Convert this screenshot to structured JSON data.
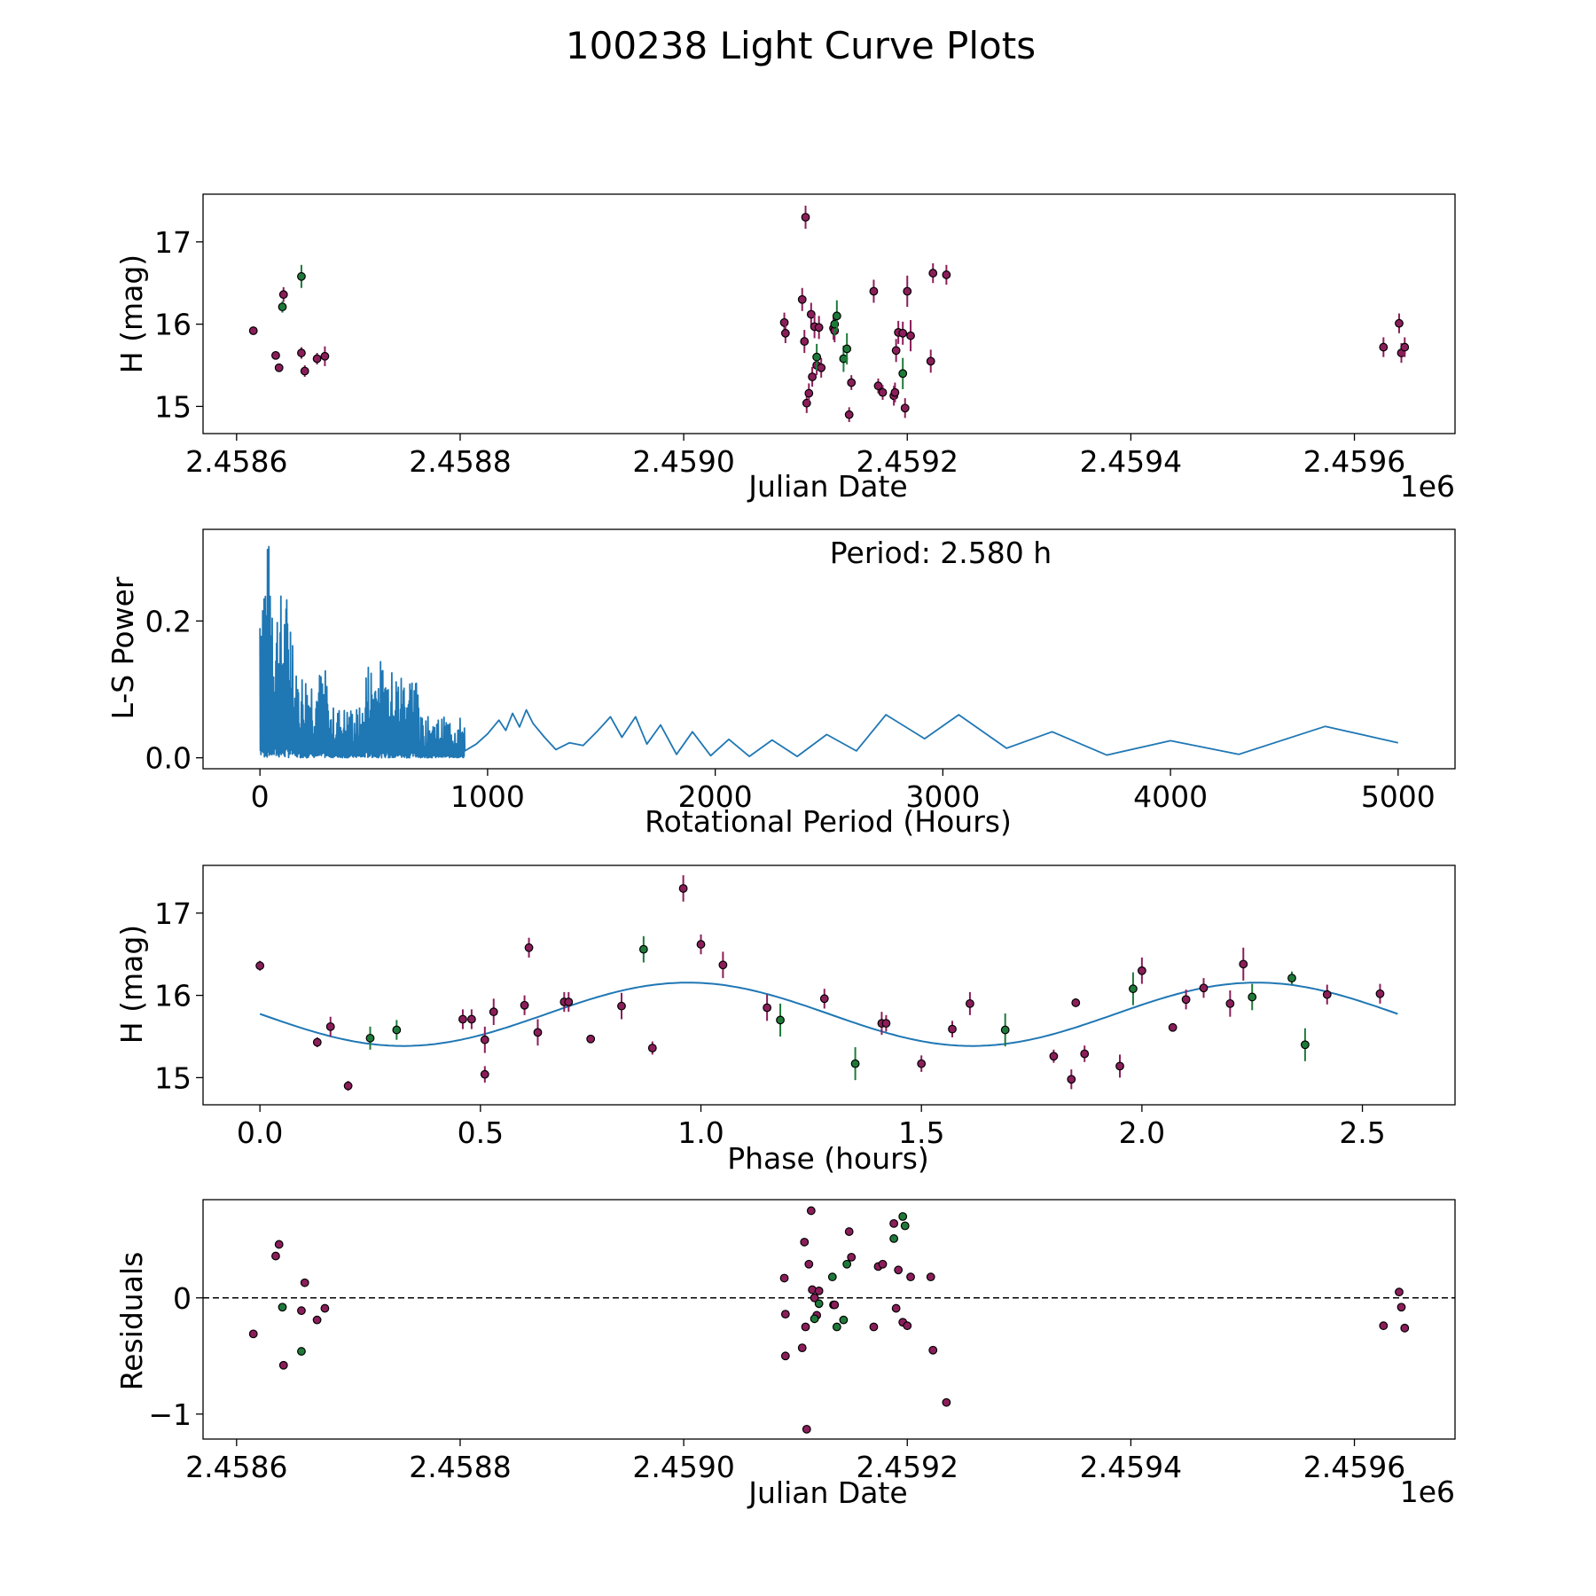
{
  "figure_title": "100238 Light Curve Plots",
  "colors": {
    "purple": "#8b1e5a",
    "green": "#1f7a3a",
    "line": "#1f77b4",
    "edge": "#000000"
  },
  "chart_data": [
    {
      "type": "scatter",
      "panel": "lightcurve",
      "title": "",
      "xlabel": "Julian Date",
      "ylabel": "H (mag)",
      "x_offset_label": "1e6",
      "xlim": [
        2.45857,
        2.45969
      ],
      "ylim": [
        14.67,
        17.58
      ],
      "xticks": [
        2.4586,
        2.4588,
        2.459,
        2.4592,
        2.4594,
        2.4596
      ],
      "xtick_labels": [
        "2.4586",
        "2.4588",
        "2.4590",
        "2.4592",
        "2.4594",
        "2.4596"
      ],
      "yticks": [
        15,
        16,
        17
      ],
      "ytick_labels": [
        "15",
        "16",
        "17"
      ],
      "series": [
        {
          "name": "purple",
          "color": "purple",
          "points": [
            [
              2.458615,
              15.92,
              0.05
            ],
            [
              2.458635,
              15.62,
              0.05
            ],
            [
              2.458638,
              15.47,
              0.05
            ],
            [
              2.458642,
              16.36,
              0.09
            ],
            [
              2.458658,
              15.65,
              0.07
            ],
            [
              2.458661,
              15.43,
              0.07
            ],
            [
              2.458672,
              15.58,
              0.07
            ],
            [
              2.458679,
              15.61,
              0.12
            ],
            [
              2.45909,
              16.02,
              0.12
            ],
            [
              2.459091,
              15.89,
              0.12
            ],
            [
              2.459106,
              16.3,
              0.14
            ],
            [
              2.459108,
              15.79,
              0.14
            ],
            [
              2.459109,
              17.3,
              0.14
            ],
            [
              2.45911,
              15.04,
              0.12
            ],
            [
              2.459112,
              15.16,
              0.12
            ],
            [
              2.459114,
              16.12,
              0.14
            ],
            [
              2.459115,
              15.36,
              0.12
            ],
            [
              2.459117,
              15.97,
              0.14
            ],
            [
              2.459119,
              15.5,
              0.12
            ],
            [
              2.459121,
              15.96,
              0.14
            ],
            [
              2.459123,
              15.47,
              0.12
            ],
            [
              2.459134,
              15.95,
              0.14
            ],
            [
              2.459135,
              15.92,
              0.14
            ],
            [
              2.459148,
              14.9,
              0.09
            ],
            [
              2.45915,
              15.29,
              0.09
            ],
            [
              2.45917,
              16.4,
              0.14
            ],
            [
              2.459174,
              15.25,
              0.09
            ],
            [
              2.459178,
              15.17,
              0.09
            ],
            [
              2.459188,
              15.13,
              0.12
            ],
            [
              2.459189,
              15.17,
              0.12
            ],
            [
              2.45919,
              15.68,
              0.14
            ],
            [
              2.459192,
              15.9,
              0.14
            ],
            [
              2.459196,
              15.89,
              0.14
            ],
            [
              2.459198,
              14.98,
              0.12
            ],
            [
              2.4592,
              16.4,
              0.19
            ],
            [
              2.459203,
              15.86,
              0.19
            ],
            [
              2.459221,
              15.55,
              0.14
            ],
            [
              2.459223,
              16.62,
              0.12
            ],
            [
              2.459235,
              16.6,
              0.12
            ],
            [
              2.459626,
              15.72,
              0.12
            ],
            [
              2.45964,
              16.01,
              0.12
            ],
            [
              2.459642,
              15.65,
              0.12
            ],
            [
              2.459645,
              15.72,
              0.12
            ]
          ]
        },
        {
          "name": "green",
          "color": "green",
          "points": [
            [
              2.458641,
              16.21,
              0.07
            ],
            [
              2.458658,
              16.58,
              0.14
            ],
            [
              2.459119,
              15.6,
              0.16
            ],
            [
              2.459135,
              16.0,
              0.14
            ],
            [
              2.459137,
              16.1,
              0.19
            ],
            [
              2.459143,
              15.58,
              0.16
            ],
            [
              2.459146,
              15.7,
              0.19
            ],
            [
              2.459196,
              15.4,
              0.19
            ]
          ]
        }
      ]
    },
    {
      "type": "line",
      "panel": "periodogram",
      "title": "",
      "xlabel": "Rotational Period (Hours)",
      "ylabel": "L-S Power",
      "annotation": "Period: 2.580 h",
      "xlim": [
        -250,
        5250
      ],
      "ylim": [
        -0.016,
        0.334
      ],
      "xticks": [
        0,
        1000,
        2000,
        3000,
        4000,
        5000
      ],
      "xtick_labels": [
        "0",
        "1000",
        "2000",
        "3000",
        "4000",
        "5000"
      ],
      "yticks": [
        0.0,
        0.2
      ],
      "ytick_labels": [
        "0.0",
        "0.2"
      ],
      "dense_noise_regions": [
        {
          "x_range": [
            0,
            60
          ],
          "envelope": 0.32
        },
        {
          "x_range": [
            60,
            150
          ],
          "envelope": 0.245
        },
        {
          "x_range": [
            150,
            300
          ],
          "envelope": 0.13
        },
        {
          "x_range": [
            300,
            460
          ],
          "envelope": 0.075
        },
        {
          "x_range": [
            460,
            560
          ],
          "envelope": 0.145
        },
        {
          "x_range": [
            560,
            700
          ],
          "envelope": 0.13
        },
        {
          "x_range": [
            700,
            900
          ],
          "envelope": 0.06
        }
      ],
      "smooth_points": [
        [
          900,
          0.01
        ],
        [
          950,
          0.02
        ],
        [
          1000,
          0.035
        ],
        [
          1050,
          0.055
        ],
        [
          1080,
          0.04
        ],
        [
          1110,
          0.065
        ],
        [
          1140,
          0.045
        ],
        [
          1170,
          0.07
        ],
        [
          1200,
          0.05
        ],
        [
          1250,
          0.03
        ],
        [
          1300,
          0.012
        ],
        [
          1360,
          0.022
        ],
        [
          1420,
          0.018
        ],
        [
          1480,
          0.038
        ],
        [
          1540,
          0.06
        ],
        [
          1590,
          0.03
        ],
        [
          1650,
          0.06
        ],
        [
          1700,
          0.02
        ],
        [
          1760,
          0.048
        ],
        [
          1830,
          0.005
        ],
        [
          1900,
          0.038
        ],
        [
          1980,
          0.003
        ],
        [
          2060,
          0.027
        ],
        [
          2150,
          0.002
        ],
        [
          2250,
          0.026
        ],
        [
          2360,
          0.002
        ],
        [
          2490,
          0.034
        ],
        [
          2620,
          0.01
        ],
        [
          2750,
          0.063
        ],
        [
          2920,
          0.028
        ],
        [
          3070,
          0.063
        ],
        [
          3280,
          0.014
        ],
        [
          3480,
          0.038
        ],
        [
          3720,
          0.004
        ],
        [
          4000,
          0.025
        ],
        [
          4300,
          0.005
        ],
        [
          4680,
          0.046
        ],
        [
          5000,
          0.022
        ]
      ]
    },
    {
      "type": "scatter",
      "panel": "phased",
      "title": "",
      "xlabel": "Phase (hours)",
      "ylabel": "H (mag)",
      "xlim": [
        -0.129,
        2.71
      ],
      "ylim": [
        14.67,
        17.58
      ],
      "xticks": [
        0.0,
        0.5,
        1.0,
        1.5,
        2.0,
        2.5
      ],
      "xtick_labels": [
        "0.0",
        "0.5",
        "1.0",
        "1.5",
        "2.0",
        "2.5"
      ],
      "yticks": [
        15,
        16,
        17
      ],
      "ytick_labels": [
        "15",
        "16",
        "17"
      ],
      "model": {
        "mean": 15.77,
        "amplitude": 0.385,
        "period_h": 1.29,
        "phase_peak": 0.97,
        "x_range": [
          0,
          2.58
        ]
      },
      "series": [
        {
          "name": "purple",
          "color": "purple",
          "points": [
            [
              0.0,
              16.36,
              0.06
            ],
            [
              0.13,
              15.43,
              0.06
            ],
            [
              0.16,
              15.62,
              0.12
            ],
            [
              0.2,
              14.9,
              0.06
            ],
            [
              0.46,
              15.71,
              0.12
            ],
            [
              0.48,
              15.71,
              0.12
            ],
            [
              0.51,
              15.46,
              0.16
            ],
            [
              0.51,
              15.04,
              0.1
            ],
            [
              0.53,
              15.8,
              0.16
            ],
            [
              0.6,
              15.88,
              0.12
            ],
            [
              0.61,
              16.58,
              0.12
            ],
            [
              0.63,
              15.55,
              0.16
            ],
            [
              0.69,
              15.92,
              0.12
            ],
            [
              0.7,
              15.92,
              0.12
            ],
            [
              0.75,
              15.47,
              0.05
            ],
            [
              0.82,
              15.87,
              0.16
            ],
            [
              0.89,
              15.36,
              0.08
            ],
            [
              0.96,
              17.3,
              0.16
            ],
            [
              1.0,
              16.62,
              0.12
            ],
            [
              1.05,
              16.37,
              0.16
            ],
            [
              1.15,
              15.85,
              0.16
            ],
            [
              1.28,
              15.96,
              0.12
            ],
            [
              1.41,
              15.66,
              0.14
            ],
            [
              1.42,
              15.66,
              0.1
            ],
            [
              1.5,
              15.17,
              0.1
            ],
            [
              1.57,
              15.59,
              0.1
            ],
            [
              1.61,
              15.9,
              0.14
            ],
            [
              1.8,
              15.26,
              0.08
            ],
            [
              1.84,
              14.98,
              0.12
            ],
            [
              1.85,
              15.91,
              0.05
            ],
            [
              1.87,
              15.29,
              0.1
            ],
            [
              1.95,
              15.14,
              0.14
            ],
            [
              2.0,
              16.3,
              0.16
            ],
            [
              2.07,
              15.61,
              0.05
            ],
            [
              2.1,
              15.95,
              0.12
            ],
            [
              2.14,
              16.09,
              0.12
            ],
            [
              2.2,
              15.9,
              0.16
            ],
            [
              2.23,
              16.38,
              0.2
            ],
            [
              2.42,
              16.01,
              0.12
            ],
            [
              2.54,
              16.02,
              0.12
            ]
          ]
        },
        {
          "name": "green",
          "color": "green",
          "points": [
            [
              0.25,
              15.48,
              0.14
            ],
            [
              0.31,
              15.58,
              0.12
            ],
            [
              0.87,
              16.56,
              0.16
            ],
            [
              1.18,
              15.7,
              0.2
            ],
            [
              1.35,
              15.17,
              0.2
            ],
            [
              1.69,
              15.58,
              0.2
            ],
            [
              1.98,
              16.08,
              0.2
            ],
            [
              2.25,
              15.98,
              0.16
            ],
            [
              2.34,
              16.21,
              0.08
            ],
            [
              2.37,
              15.4,
              0.2
            ]
          ]
        }
      ]
    },
    {
      "type": "scatter",
      "panel": "residuals",
      "title": "",
      "xlabel": "Julian Date",
      "ylabel": "Residuals",
      "x_offset_label": "1e6",
      "xlim": [
        2.45857,
        2.45969
      ],
      "ylim": [
        -1.215,
        0.845
      ],
      "xticks": [
        2.4586,
        2.4588,
        2.459,
        2.4592,
        2.4594,
        2.4596
      ],
      "xtick_labels": [
        "2.4586",
        "2.4588",
        "2.4590",
        "2.4592",
        "2.4594",
        "2.4596"
      ],
      "yticks": [
        -1,
        0
      ],
      "ytick_labels": [
        "−1",
        "0"
      ],
      "zero_line": 0,
      "series": [
        {
          "name": "purple",
          "color": "purple",
          "points": [
            [
              2.458615,
              -0.31
            ],
            [
              2.458635,
              0.36
            ],
            [
              2.458638,
              0.46
            ],
            [
              2.458642,
              -0.58
            ],
            [
              2.458658,
              -0.11
            ],
            [
              2.458661,
              0.13
            ],
            [
              2.458672,
              -0.19
            ],
            [
              2.458679,
              -0.09
            ],
            [
              2.45909,
              0.17
            ],
            [
              2.459091,
              -0.14
            ],
            [
              2.459091,
              -0.5
            ],
            [
              2.459106,
              -0.43
            ],
            [
              2.459108,
              0.48
            ],
            [
              2.459109,
              -0.25
            ],
            [
              2.45911,
              -1.13
            ],
            [
              2.459112,
              0.29
            ],
            [
              2.459114,
              0.75
            ],
            [
              2.459115,
              0.07
            ],
            [
              2.459117,
              0.0
            ],
            [
              2.459119,
              -0.15
            ],
            [
              2.459121,
              0.06
            ],
            [
              2.459134,
              -0.06
            ],
            [
              2.459135,
              -0.06
            ],
            [
              2.459148,
              0.57
            ],
            [
              2.45915,
              0.35
            ],
            [
              2.45917,
              -0.25
            ],
            [
              2.459174,
              0.27
            ],
            [
              2.459178,
              0.29
            ],
            [
              2.459188,
              0.64
            ],
            [
              2.45919,
              -0.09
            ],
            [
              2.459192,
              0.24
            ],
            [
              2.459196,
              -0.21
            ],
            [
              2.4592,
              -0.24
            ],
            [
              2.459203,
              0.18
            ],
            [
              2.459221,
              0.18
            ],
            [
              2.459223,
              -0.45
            ],
            [
              2.459235,
              -0.9
            ],
            [
              2.459626,
              -0.24
            ],
            [
              2.45964,
              0.05
            ],
            [
              2.459642,
              -0.08
            ],
            [
              2.459645,
              -0.26
            ]
          ]
        },
        {
          "name": "green",
          "color": "green",
          "points": [
            [
              2.458641,
              -0.08
            ],
            [
              2.458658,
              -0.46
            ],
            [
              2.459117,
              -0.18
            ],
            [
              2.459121,
              -0.05
            ],
            [
              2.459133,
              0.18
            ],
            [
              2.459137,
              -0.25
            ],
            [
              2.459143,
              -0.19
            ],
            [
              2.459146,
              0.29
            ],
            [
              2.459188,
              0.51
            ],
            [
              2.459196,
              0.7
            ],
            [
              2.459198,
              0.62
            ]
          ]
        }
      ]
    }
  ]
}
